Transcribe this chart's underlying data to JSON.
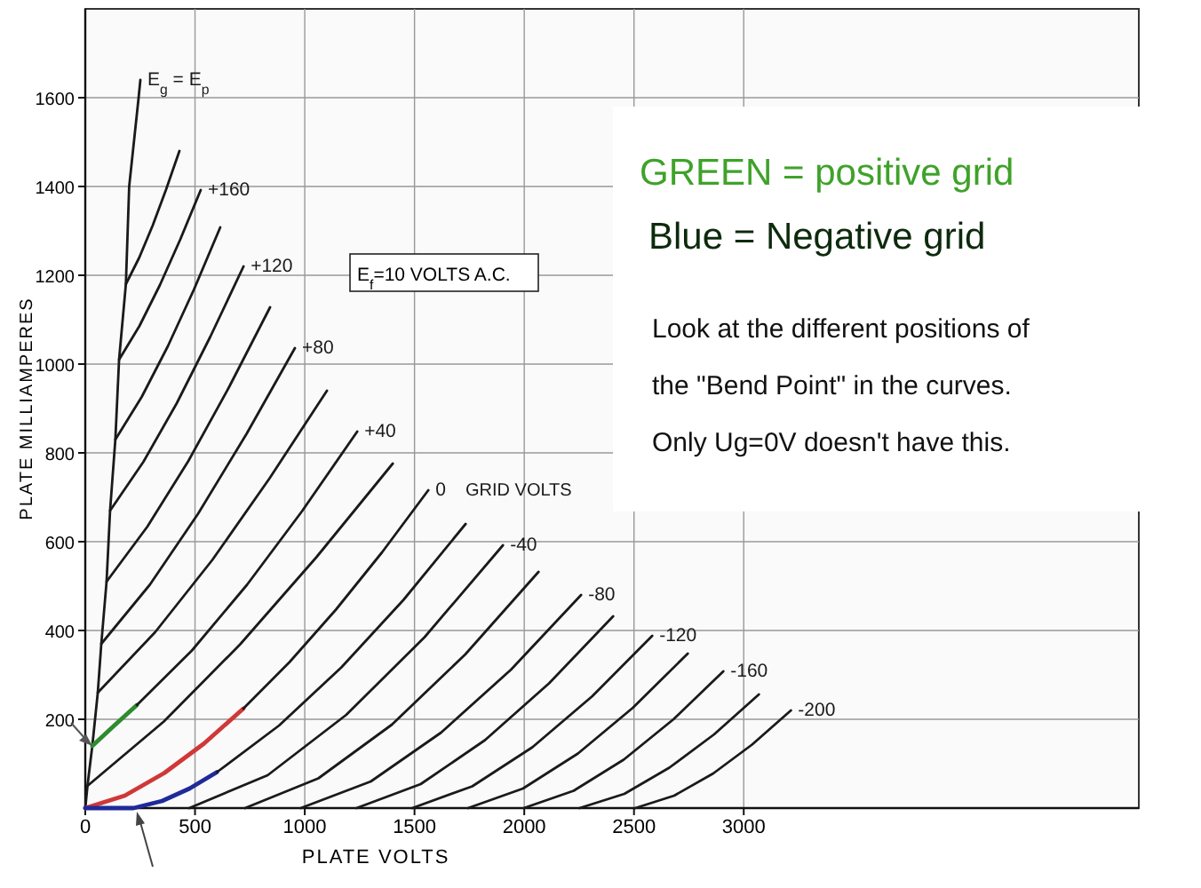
{
  "chart_data": {
    "type": "line",
    "xlabel": "PLATE VOLTS",
    "ylabel": "PLATE MILLIAMPERES",
    "xlim": [
      0,
      4800
    ],
    "ylim": [
      0,
      1800
    ],
    "xticks": [
      0,
      500,
      1000,
      1500,
      2000,
      2500,
      3000
    ],
    "yticks": [
      200,
      400,
      600,
      800,
      1000,
      1200,
      1400,
      1600
    ],
    "grid": true,
    "marker": "none",
    "line_style": "solid",
    "annotations": [
      "GRID VOLTS",
      "E$_{f}$=10 VOLTS  A.C.",
      "GREEN = positive grid",
      "Blue = Negative grid",
      "Look at the different positions of",
      "the  \"Bend Point\" in the curves.",
      "Only Ug=0V doesn't have this."
    ],
    "series": [
      {
        "name": "E$_{g}$ = E$_{p}$",
        "color": "#1a1a1a",
        "x": [
          0,
          10,
          32,
          57,
          73,
          97,
          113,
          137,
          154,
          185,
          200,
          243,
          251
        ],
        "values": [
          0,
          50,
          140,
          260,
          370,
          510,
          670,
          830,
          1010,
          1180,
          1400,
          1600,
          1640
        ]
      },
      {
        "color": "#1a1a1a",
        "x": [
          185,
          246,
          307,
          368,
          429
        ],
        "values": [
          1180,
          1240,
          1312,
          1393,
          1480
        ]
      },
      {
        "name": "+160",
        "color": "#1a1a1a",
        "x": [
          154,
          247,
          340,
          433,
          526
        ],
        "values": [
          1010,
          1086,
          1178,
          1281,
          1392
        ]
      },
      {
        "color": "#1a1a1a",
        "x": [
          137,
          257,
          376,
          496,
          615
        ],
        "values": [
          830,
          926,
          1040,
          1169,
          1308
        ]
      },
      {
        "name": "+120",
        "color": "#1a1a1a",
        "x": [
          113,
          265,
          417,
          569,
          721
        ],
        "values": [
          670,
          780,
          912,
          1061,
          1220
        ]
      },
      {
        "color": "#1a1a1a",
        "x": [
          97,
          283,
          470,
          656,
          842
        ],
        "values": [
          510,
          634,
          782,
          949,
          1128
        ]
      },
      {
        "name": "+80",
        "color": "#1a1a1a",
        "x": [
          73,
          294,
          514,
          735,
          955
        ],
        "values": [
          370,
          503,
          663,
          843,
          1036
        ]
      },
      {
        "color": "#1a1a1a",
        "x": [
          57,
          318,
          579,
          840,
          1101
        ],
        "values": [
          260,
          396,
          559,
          743,
          940
        ]
      },
      {
        "color": "#2e8b2e",
        "x": [
          32,
          130,
          235
        ],
        "values": [
          140,
          185,
          232
        ]
      },
      {
        "name": "+40",
        "color": "#1a1a1a",
        "x": [
          235,
          486,
          737,
          988,
          1239
        ],
        "values": [
          232,
          355,
          503,
          669,
          848
        ]
      },
      {
        "color": "#1a1a1a",
        "x": [
          10,
          358,
          706,
          1053,
          1401
        ],
        "values": [
          50,
          195,
          369,
          565,
          776
        ]
      },
      {
        "color": "#d03838",
        "x": [
          0,
          180,
          360,
          540,
          720
        ],
        "values": [
          0,
          28,
          79,
          145,
          224
        ]
      },
      {
        "name": "0",
        "color": "#1a1a1a",
        "x": [
          720,
          931,
          1142,
          1352,
          1563
        ],
        "values": [
          224,
          329,
          447,
          576,
          716
        ]
      },
      {
        "color": "#1f2a9a",
        "x": [
          0,
          220,
          350,
          475,
          600
        ],
        "values": [
          0,
          0,
          16,
          44,
          81
        ]
      },
      {
        "color": "#1a1a1a",
        "x": [
          600,
          883,
          1167,
          1450,
          1733
        ],
        "values": [
          81,
          186,
          317,
          469,
          640
        ]
      },
      {
        "name": "-40",
        "color": "#1a1a1a",
        "x": [
          474,
          831,
          1189,
          1546,
          1903
        ],
        "values": [
          0,
          74,
          210,
          385,
          592
        ]
      },
      {
        "color": "#1a1a1a",
        "x": [
          728,
          1062,
          1397,
          1731,
          2065
        ],
        "values": [
          0,
          67,
          188,
          346,
          532
        ]
      },
      {
        "name": "-80",
        "color": "#1a1a1a",
        "x": [
          982,
          1301,
          1621,
          1940,
          2259
        ],
        "values": [
          0,
          60,
          170,
          312,
          480
        ]
      },
      {
        "color": "#1a1a1a",
        "x": [
          1236,
          1528,
          1821,
          2113,
          2405
        ],
        "values": [
          0,
          54,
          153,
          281,
          432
        ]
      },
      {
        "name": "-120",
        "color": "#1a1a1a",
        "x": [
          1490,
          1763,
          2037,
          2310,
          2583
        ],
        "values": [
          0,
          49,
          137,
          252,
          388
        ]
      },
      {
        "color": "#1a1a1a",
        "x": [
          1744,
          1994,
          2245,
          2495,
          2745
        ],
        "values": [
          0,
          44,
          123,
          226,
          348
        ]
      },
      {
        "name": "-160",
        "color": "#1a1a1a",
        "x": [
          1998,
          2225,
          2453,
          2680,
          2907
        ],
        "values": [
          0,
          39,
          109,
          200,
          308
        ]
      },
      {
        "color": "#1a1a1a",
        "x": [
          2252,
          2456,
          2661,
          2865,
          3069
        ],
        "values": [
          0,
          32,
          91,
          166,
          256
        ]
      },
      {
        "name": "-200",
        "color": "#1a1a1a",
        "x": [
          2506,
          2683,
          2861,
          3038,
          3215
        ],
        "values": [
          0,
          28,
          78,
          143,
          220
        ]
      }
    ]
  }
}
